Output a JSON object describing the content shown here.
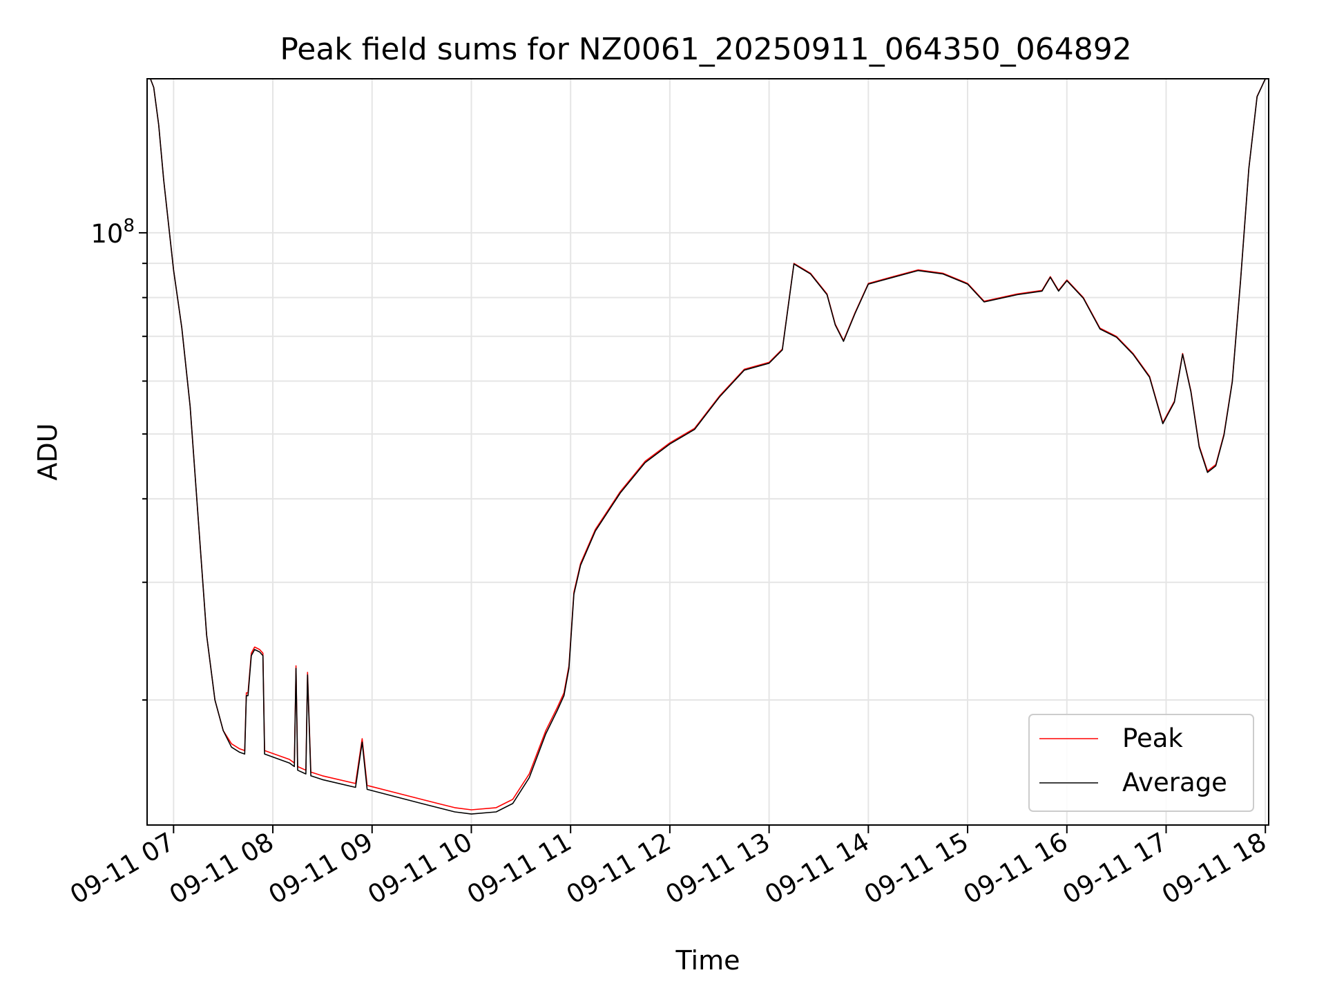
{
  "chart_data": {
    "type": "line",
    "title": "Peak field sums for NZ0061_20250911_064350_064892",
    "xlabel": "Time",
    "ylabel": "ADU",
    "y_scale": "log",
    "ylim": [
      13000000,
      170000000
    ],
    "xlim": [
      "2025-09-11 06:44",
      "2025-09-11 18:02"
    ],
    "x_ticks": [
      "09-11 07",
      "09-11 08",
      "09-11 09",
      "09-11 10",
      "09-11 11",
      "09-11 12",
      "09-11 13",
      "09-11 14",
      "09-11 15",
      "09-11 16",
      "09-11 17",
      "09-11 18"
    ],
    "y_tick_labels": [
      {
        "base": "10",
        "exp": "8",
        "value": 100000000
      }
    ],
    "grid": true,
    "legend": {
      "placement": "lower-right"
    },
    "series": [
      {
        "name": "Peak",
        "color": "#ff0000",
        "x": [
          "2025-09-11 06:46",
          "2025-09-11 06:48",
          "2025-09-11 06:51",
          "2025-09-11 06:54",
          "2025-09-11 07:00",
          "2025-09-11 07:05",
          "2025-09-11 07:10",
          "2025-09-11 07:15",
          "2025-09-11 07:20",
          "2025-09-11 07:25",
          "2025-09-11 07:30",
          "2025-09-11 07:35",
          "2025-09-11 07:40",
          "2025-09-11 07:43",
          "2025-09-11 07:44",
          "2025-09-11 07:45",
          "2025-09-11 07:47",
          "2025-09-11 07:49",
          "2025-09-11 07:52",
          "2025-09-11 07:54",
          "2025-09-11 07:55",
          "2025-09-11 08:10",
          "2025-09-11 08:13",
          "2025-09-11 08:14",
          "2025-09-11 08:15",
          "2025-09-11 08:20",
          "2025-09-11 08:21",
          "2025-09-11 08:23",
          "2025-09-11 08:30",
          "2025-09-11 08:50",
          "2025-09-11 08:54",
          "2025-09-11 08:57",
          "2025-09-11 09:30",
          "2025-09-11 09:50",
          "2025-09-11 10:00",
          "2025-09-11 10:15",
          "2025-09-11 10:25",
          "2025-09-11 10:35",
          "2025-09-11 10:45",
          "2025-09-11 10:52",
          "2025-09-11 10:56",
          "2025-09-11 10:59",
          "2025-09-11 11:02",
          "2025-09-11 11:06",
          "2025-09-11 11:15",
          "2025-09-11 11:30",
          "2025-09-11 11:45",
          "2025-09-11 12:00",
          "2025-09-11 12:15",
          "2025-09-11 12:30",
          "2025-09-11 12:45",
          "2025-09-11 13:00",
          "2025-09-11 13:08",
          "2025-09-11 13:15",
          "2025-09-11 13:25",
          "2025-09-11 13:35",
          "2025-09-11 13:40",
          "2025-09-11 13:45",
          "2025-09-11 13:52",
          "2025-09-11 14:00",
          "2025-09-11 14:15",
          "2025-09-11 14:30",
          "2025-09-11 14:45",
          "2025-09-11 15:00",
          "2025-09-11 15:10",
          "2025-09-11 15:20",
          "2025-09-11 15:30",
          "2025-09-11 15:45",
          "2025-09-11 15:50",
          "2025-09-11 15:55",
          "2025-09-11 16:00",
          "2025-09-11 16:10",
          "2025-09-11 16:20",
          "2025-09-11 16:30",
          "2025-09-11 16:40",
          "2025-09-11 16:50",
          "2025-09-11 16:58",
          "2025-09-11 17:05",
          "2025-09-11 17:10",
          "2025-09-11 17:15",
          "2025-09-11 17:20",
          "2025-09-11 17:25",
          "2025-09-11 17:30",
          "2025-09-11 17:35",
          "2025-09-11 17:40",
          "2025-09-11 17:45",
          "2025-09-11 17:50",
          "2025-09-11 17:55",
          "2025-09-11 18:00"
        ],
        "values": [
          170000000,
          165000000,
          145000000,
          120000000,
          88000000,
          72000000,
          55000000,
          37000000,
          25000000,
          20000000,
          18000000,
          17200000,
          16900000,
          16800000,
          20500000,
          20500000,
          23500000,
          24000000,
          23800000,
          23500000,
          16800000,
          16300000,
          16100000,
          22500000,
          15900000,
          15700000,
          22000000,
          15600000,
          15400000,
          15000000,
          17500000,
          14900000,
          14200000,
          13800000,
          13700000,
          13800000,
          14200000,
          15500000,
          18000000,
          19500000,
          20500000,
          22500000,
          29000000,
          32000000,
          36000000,
          41000000,
          45500000,
          48500000,
          51000000,
          57000000,
          62500000,
          64000000,
          67000000,
          90000000,
          87000000,
          81000000,
          73000000,
          69000000,
          76000000,
          84000000,
          86000000,
          88000000,
          87000000,
          84000000,
          79000000,
          80000000,
          81000000,
          82000000,
          86000000,
          82000000,
          85000000,
          80000000,
          72000000,
          70000000,
          66000000,
          61000000,
          52000000,
          56000000,
          66000000,
          58000000,
          48000000,
          44000000,
          45000000,
          50000000,
          60000000,
          85000000,
          125000000,
          160000000,
          170000000
        ]
      },
      {
        "name": "Average",
        "color": "#000000",
        "x": [
          "2025-09-11 06:46",
          "2025-09-11 06:48",
          "2025-09-11 06:51",
          "2025-09-11 06:54",
          "2025-09-11 07:00",
          "2025-09-11 07:05",
          "2025-09-11 07:10",
          "2025-09-11 07:15",
          "2025-09-11 07:20",
          "2025-09-11 07:25",
          "2025-09-11 07:30",
          "2025-09-11 07:35",
          "2025-09-11 07:40",
          "2025-09-11 07:43",
          "2025-09-11 07:44",
          "2025-09-11 07:45",
          "2025-09-11 07:47",
          "2025-09-11 07:49",
          "2025-09-11 07:52",
          "2025-09-11 07:54",
          "2025-09-11 07:55",
          "2025-09-11 08:10",
          "2025-09-11 08:13",
          "2025-09-11 08:14",
          "2025-09-11 08:15",
          "2025-09-11 08:20",
          "2025-09-11 08:21",
          "2025-09-11 08:23",
          "2025-09-11 08:30",
          "2025-09-11 08:50",
          "2025-09-11 08:54",
          "2025-09-11 08:57",
          "2025-09-11 09:30",
          "2025-09-11 09:50",
          "2025-09-11 10:00",
          "2025-09-11 10:15",
          "2025-09-11 10:25",
          "2025-09-11 10:35",
          "2025-09-11 10:45",
          "2025-09-11 10:52",
          "2025-09-11 10:56",
          "2025-09-11 10:59",
          "2025-09-11 11:02",
          "2025-09-11 11:06",
          "2025-09-11 11:15",
          "2025-09-11 11:30",
          "2025-09-11 11:45",
          "2025-09-11 12:00",
          "2025-09-11 12:15",
          "2025-09-11 12:30",
          "2025-09-11 12:45",
          "2025-09-11 13:00",
          "2025-09-11 13:08",
          "2025-09-11 13:15",
          "2025-09-11 13:25",
          "2025-09-11 13:35",
          "2025-09-11 13:40",
          "2025-09-11 13:45",
          "2025-09-11 13:52",
          "2025-09-11 14:00",
          "2025-09-11 14:15",
          "2025-09-11 14:30",
          "2025-09-11 14:45",
          "2025-09-11 15:00",
          "2025-09-11 15:10",
          "2025-09-11 15:20",
          "2025-09-11 15:30",
          "2025-09-11 15:45",
          "2025-09-11 15:50",
          "2025-09-11 15:55",
          "2025-09-11 16:00",
          "2025-09-11 16:10",
          "2025-09-11 16:20",
          "2025-09-11 16:30",
          "2025-09-11 16:40",
          "2025-09-11 16:50",
          "2025-09-11 16:58",
          "2025-09-11 17:05",
          "2025-09-11 17:10",
          "2025-09-11 17:15",
          "2025-09-11 17:20",
          "2025-09-11 17:25",
          "2025-09-11 17:30",
          "2025-09-11 17:35",
          "2025-09-11 17:40",
          "2025-09-11 17:45",
          "2025-09-11 17:50",
          "2025-09-11 17:55",
          "2025-09-11 18:00"
        ],
        "values": [
          170000000,
          165000000,
          145000000,
          120000000,
          88000000,
          72000000,
          55000000,
          37000000,
          25000000,
          20000000,
          18000000,
          17000000,
          16700000,
          16600000,
          20300000,
          20300000,
          23300000,
          23800000,
          23600000,
          23300000,
          16600000,
          16100000,
          15900000,
          22300000,
          15700000,
          15500000,
          21800000,
          15400000,
          15200000,
          14800000,
          17300000,
          14700000,
          14000000,
          13600000,
          13500000,
          13600000,
          14000000,
          15300000,
          17800000,
          19300000,
          20300000,
          22300000,
          28800000,
          31800000,
          35800000,
          40800000,
          45300000,
          48300000,
          50800000,
          56800000,
          62300000,
          63800000,
          66800000,
          89800000,
          86800000,
          80800000,
          72800000,
          68800000,
          75800000,
          83800000,
          85800000,
          87800000,
          86800000,
          83800000,
          78800000,
          79800000,
          80800000,
          81800000,
          85800000,
          81800000,
          84800000,
          79800000,
          71800000,
          69800000,
          65800000,
          60800000,
          51800000,
          55800000,
          65800000,
          57800000,
          47800000,
          43800000,
          44800000,
          49800000,
          59800000,
          84800000,
          124800000,
          159800000,
          170000000
        ]
      }
    ]
  }
}
